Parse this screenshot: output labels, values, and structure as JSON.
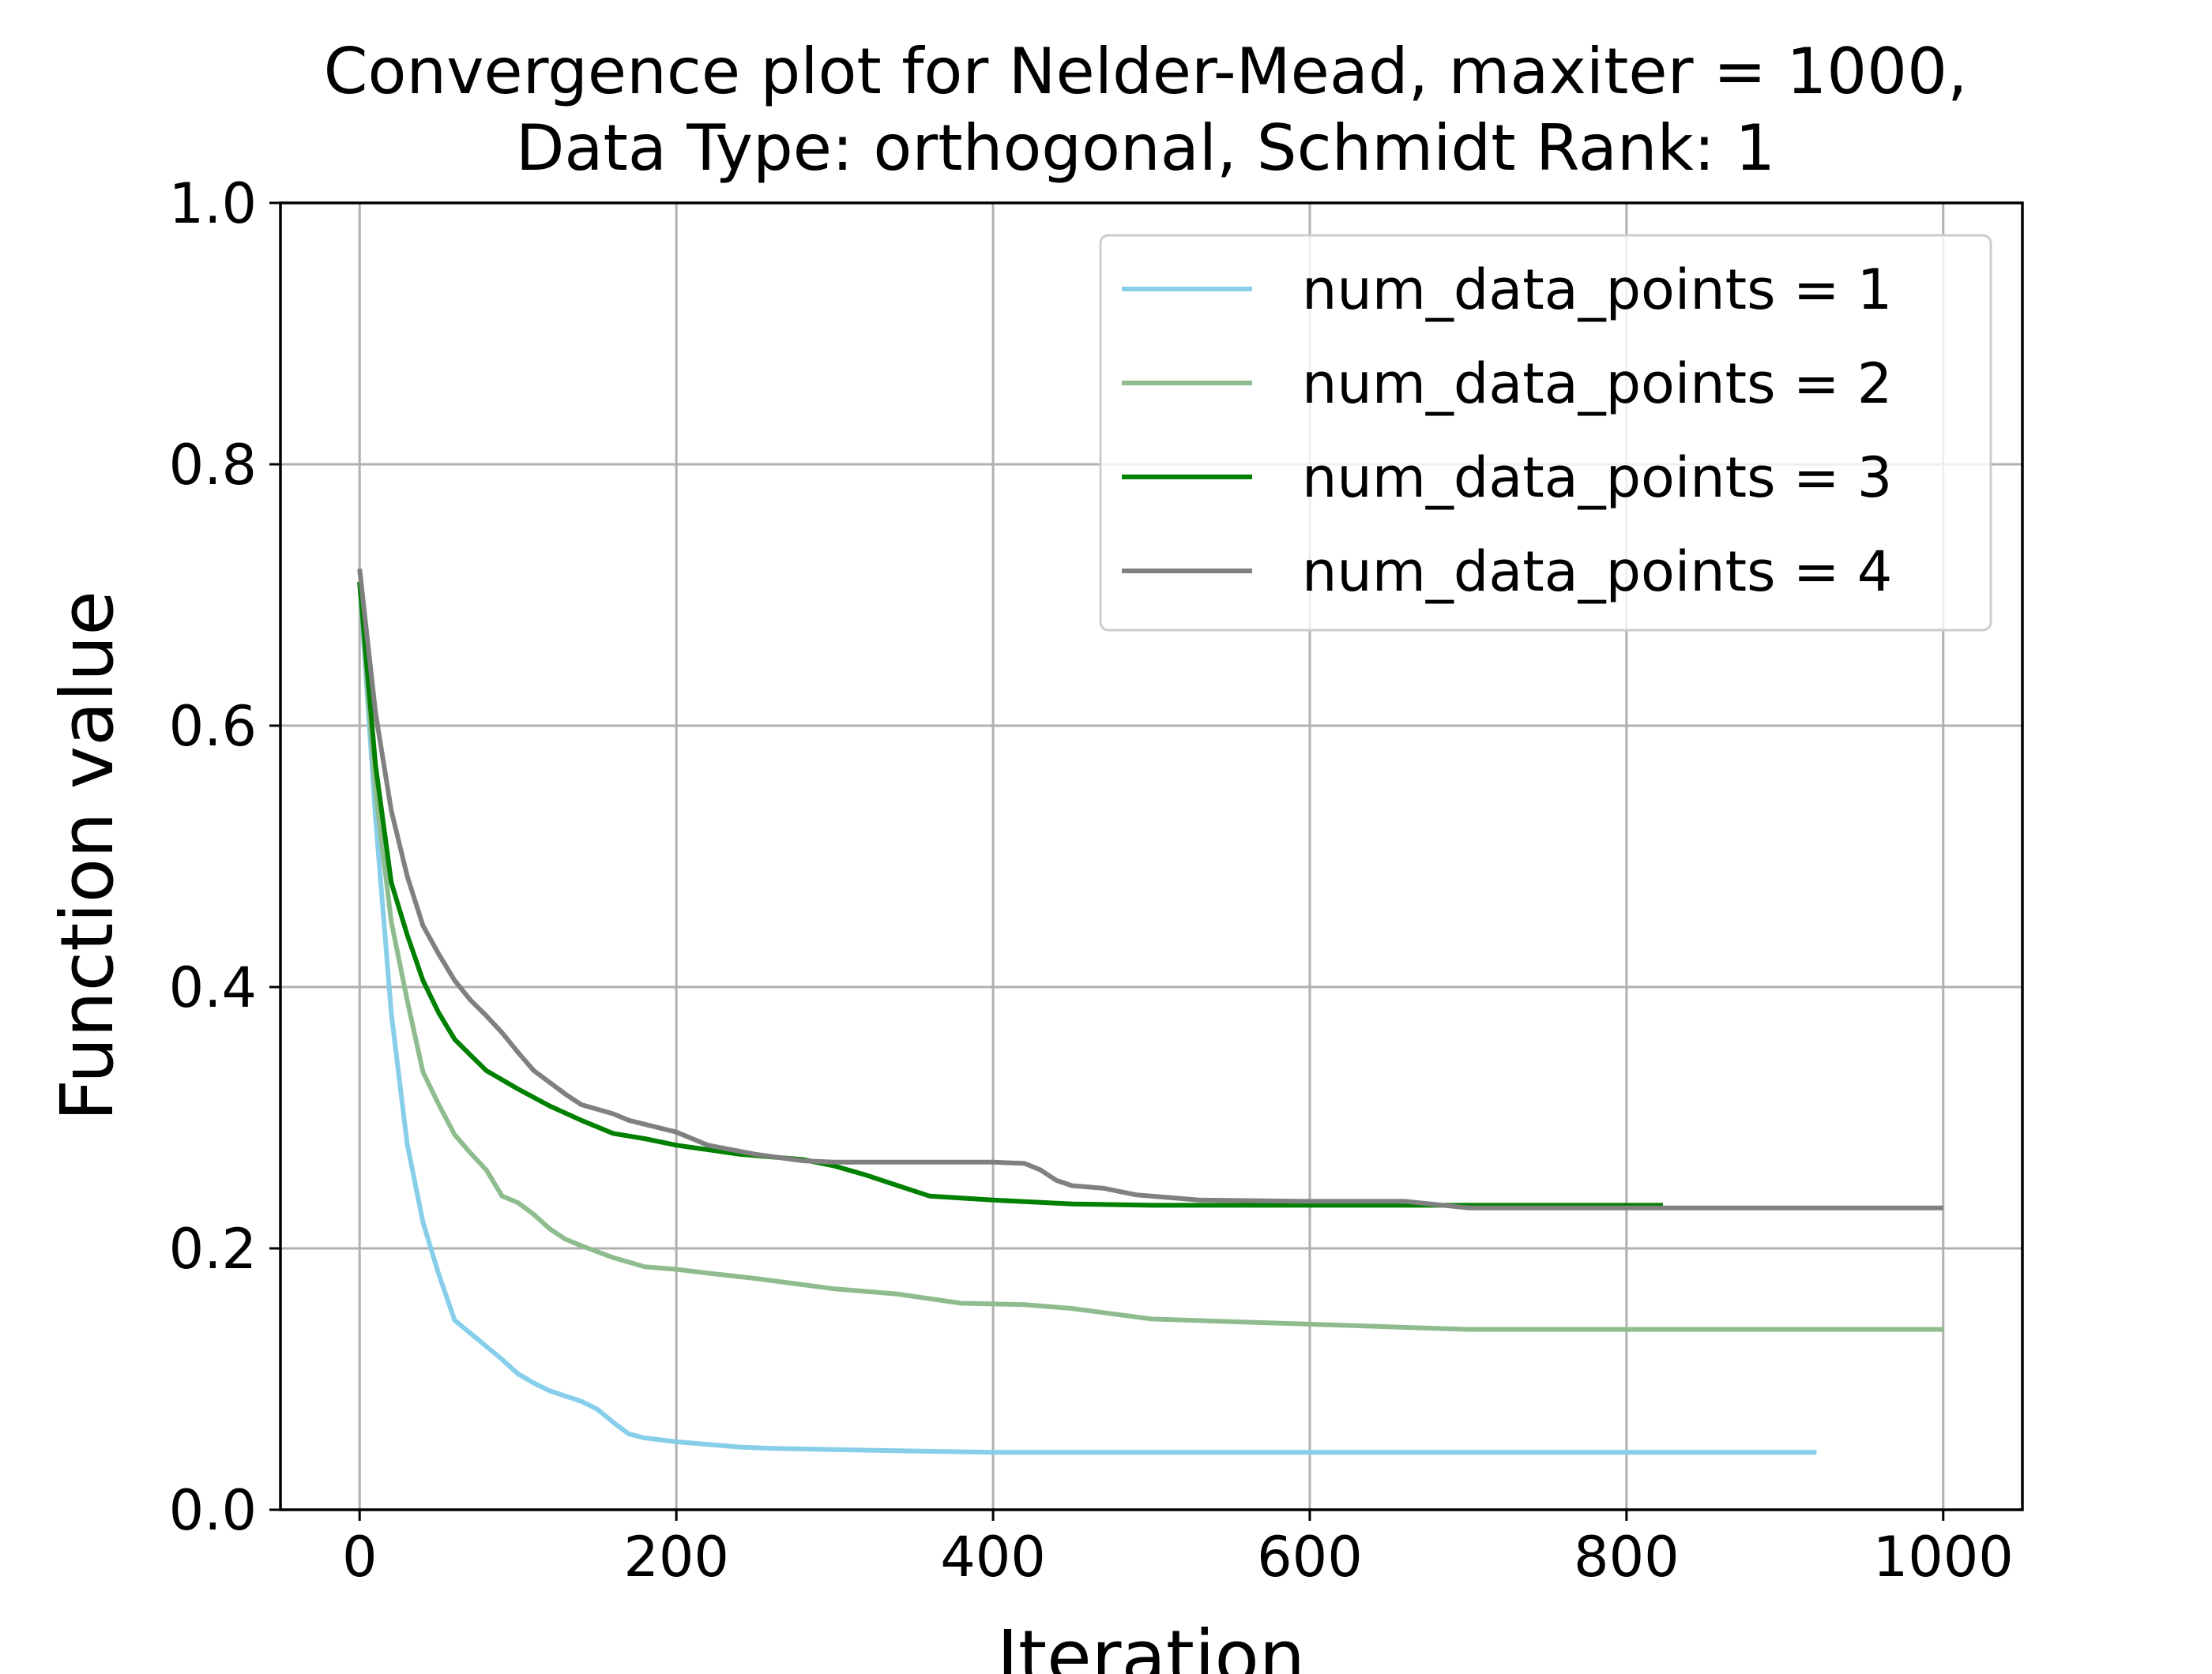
{
  "chart_data": {
    "type": "line",
    "title_lines": [
      "Convergence plot for Nelder-Mead, maxiter = 1000,",
      "Data Type: orthogonal, Schmidt Rank: 1"
    ],
    "xlabel": "Iteration",
    "ylabel": "Function value",
    "xlim": [
      -50,
      1050
    ],
    "ylim": [
      0,
      1
    ],
    "xticks": [
      0,
      200,
      400,
      600,
      800,
      1000
    ],
    "xtick_labels": [
      "0",
      "200",
      "400",
      "600",
      "800",
      "1000"
    ],
    "yticks": [
      0,
      0.2,
      0.4,
      0.6,
      0.8,
      1.0
    ],
    "ytick_labels": [
      "0.0",
      "0.2",
      "0.4",
      "0.6",
      "0.8",
      "1.0"
    ],
    "grid": true,
    "legend_position": "top-right",
    "series": [
      {
        "name": "num_data_points = 1",
        "color": "#87ceeb",
        "x": [
          0,
          10,
          20,
          30,
          40,
          50,
          60,
          70,
          80,
          90,
          100,
          110,
          120,
          130,
          140,
          150,
          160,
          170,
          180,
          200,
          220,
          240,
          260,
          300,
          400,
          500,
          600,
          700,
          800,
          920
        ],
        "y": [
          0.71,
          0.53,
          0.38,
          0.28,
          0.22,
          0.18,
          0.145,
          0.135,
          0.125,
          0.115,
          0.104,
          0.097,
          0.091,
          0.087,
          0.083,
          0.077,
          0.067,
          0.058,
          0.055,
          0.052,
          0.05,
          0.048,
          0.047,
          0.046,
          0.044,
          0.044,
          0.044,
          0.044,
          0.044,
          0.044
        ]
      },
      {
        "name": "num_data_points = 2",
        "color": "#8fbc8f",
        "x": [
          0,
          10,
          20,
          30,
          40,
          50,
          60,
          70,
          80,
          90,
          100,
          110,
          120,
          130,
          140,
          160,
          180,
          200,
          220,
          250,
          300,
          340,
          380,
          420,
          450,
          500,
          550,
          600,
          650,
          700,
          800,
          1000
        ],
        "y": [
          0.71,
          0.55,
          0.45,
          0.39,
          0.335,
          0.31,
          0.287,
          0.273,
          0.26,
          0.24,
          0.235,
          0.226,
          0.215,
          0.207,
          0.202,
          0.193,
          0.186,
          0.184,
          0.181,
          0.177,
          0.169,
          0.165,
          0.158,
          0.157,
          0.154,
          0.146,
          0.144,
          0.142,
          0.14,
          0.138,
          0.138,
          0.138
        ]
      },
      {
        "name": "num_data_points = 3",
        "color": "#008000",
        "x": [
          0,
          10,
          20,
          30,
          40,
          50,
          60,
          70,
          80,
          100,
          120,
          140,
          160,
          180,
          200,
          240,
          280,
          300,
          320,
          340,
          360,
          400,
          450,
          500,
          600,
          700,
          823
        ],
        "y": [
          0.71,
          0.57,
          0.48,
          0.44,
          0.405,
          0.38,
          0.36,
          0.348,
          0.336,
          0.322,
          0.309,
          0.298,
          0.288,
          0.284,
          0.279,
          0.272,
          0.268,
          0.263,
          0.256,
          0.248,
          0.24,
          0.237,
          0.234,
          0.233,
          0.233,
          0.233,
          0.233
        ]
      },
      {
        "name": "num_data_points = 4",
        "color": "#808080",
        "x": [
          0,
          10,
          20,
          30,
          40,
          50,
          60,
          70,
          80,
          90,
          100,
          110,
          120,
          130,
          140,
          160,
          170,
          180,
          200,
          220,
          250,
          280,
          300,
          350,
          400,
          420,
          430,
          440,
          450,
          470,
          490,
          530,
          600,
          660,
          700,
          800,
          1000
        ],
        "y": [
          0.72,
          0.61,
          0.535,
          0.485,
          0.447,
          0.425,
          0.405,
          0.39,
          0.378,
          0.365,
          0.35,
          0.336,
          0.327,
          0.318,
          0.31,
          0.303,
          0.298,
          0.295,
          0.289,
          0.279,
          0.272,
          0.267,
          0.266,
          0.266,
          0.266,
          0.265,
          0.26,
          0.252,
          0.248,
          0.246,
          0.241,
          0.237,
          0.236,
          0.236,
          0.231,
          0.231,
          0.231
        ]
      }
    ]
  }
}
